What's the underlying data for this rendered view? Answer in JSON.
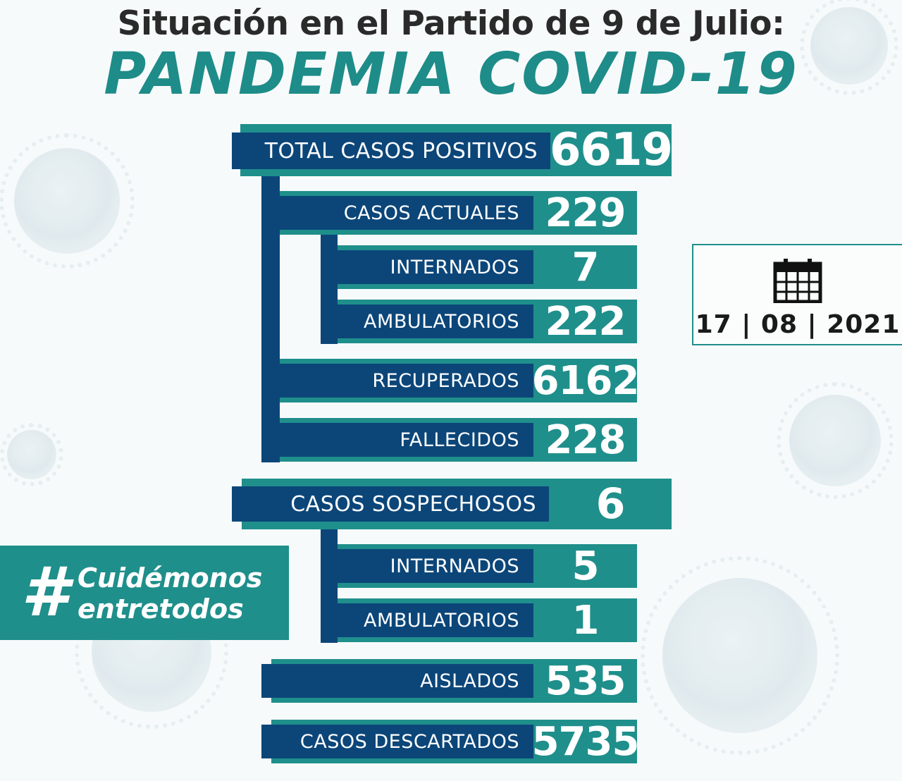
{
  "header": {
    "subtitle": "Situación en el Partido de 9 de Julio:",
    "title": "PANDEMIA COVID-19"
  },
  "stats": {
    "total": {
      "label": "TOTAL CASOS POSITIVOS",
      "value": "6619"
    },
    "actuales": {
      "label": "CASOS ACTUALES",
      "value": "229"
    },
    "internados": {
      "label": "INTERNADOS",
      "value": "7"
    },
    "ambulatorios": {
      "label": "AMBULATORIOS",
      "value": "222"
    },
    "recuperados": {
      "label": "RECUPERADOS",
      "value": "6162"
    },
    "fallecidos": {
      "label": "FALLECIDOS",
      "value": "228"
    },
    "sospechosos": {
      "label": "CASOS SOSPECHOSOS",
      "value": "6"
    },
    "sosp_internados": {
      "label": "INTERNADOS",
      "value": "5"
    },
    "sosp_ambulatorios": {
      "label": "AMBULATORIOS",
      "value": "1"
    },
    "aislados": {
      "label": "AISLADOS",
      "value": "535"
    },
    "descartados": {
      "label": "CASOS DESCARTADOS",
      "value": "5735"
    }
  },
  "date": {
    "text": "17 | 08 | 2021",
    "icon": "calendar-icon"
  },
  "hashtag": {
    "symbol": "#",
    "line1": "Cuidémonos",
    "line2": "entretodos"
  },
  "colors": {
    "teal": "#1f8f8b",
    "navy": "#0c4679"
  }
}
